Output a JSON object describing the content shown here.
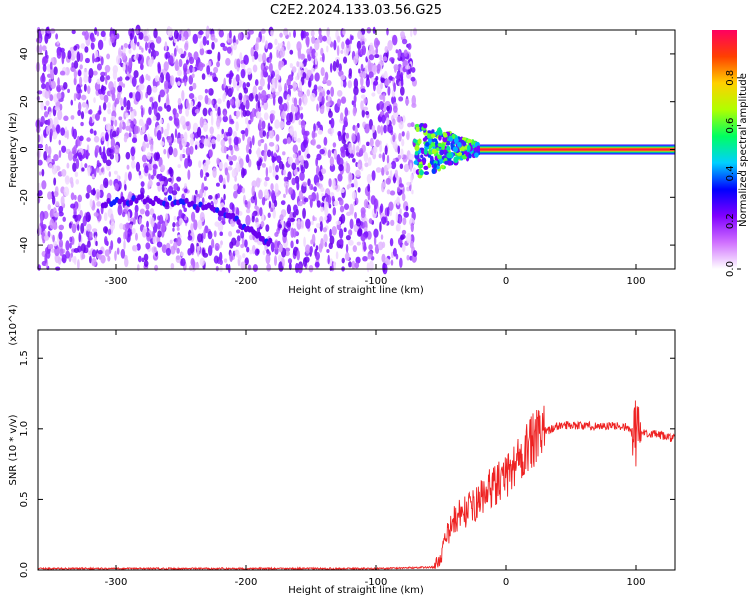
{
  "title": "C2E2.2024.133.03.56.G25",
  "chart_data": [
    {
      "type": "heatmap",
      "title": "C2E2.2024.133.03.56.G25",
      "xlabel": "Height of straight line (km)",
      "ylabel": "Frequency (Hz)",
      "xlim": [
        -360,
        130
      ],
      "ylim": [
        -50,
        50
      ],
      "x_ticks": [
        -300,
        -200,
        -100,
        0,
        100
      ],
      "y_ticks": [
        -40,
        -20,
        0,
        20,
        40
      ],
      "noise_region_x": [
        -360,
        -70
      ],
      "broadening_region_x": [
        -70,
        -20
      ],
      "narrow_trace": {
        "x_start": -20,
        "x_end": 130,
        "frequency": 0
      },
      "faint_drifting_trace": {
        "x": [
          -310,
          -280,
          -250,
          -220,
          -200,
          -180
        ],
        "frequency": [
          -23,
          -21,
          -22,
          -26,
          -32,
          -40
        ]
      },
      "colorbar": {
        "label": "Normalized spectral amplitude",
        "range": [
          0,
          1
        ],
        "ticks": [
          "0.0",
          "0.2",
          "0.4",
          "0.6",
          "0.8"
        ],
        "colormap": [
          "#ffffff",
          "#d070ff",
          "#8000ff",
          "#0000ff",
          "#00d0ff",
          "#00ff60",
          "#b0ff00",
          "#ffd000",
          "#ff4000",
          "#ff0060"
        ]
      }
    },
    {
      "type": "line",
      "xlabel": "Height of straight line (km)",
      "ylabel": "SNR (10 * v/v)",
      "multiplier": "(x10^4)",
      "xlim": [
        -360,
        130
      ],
      "ylim": [
        0,
        1.7
      ],
      "x_ticks": [
        -300,
        -200,
        -100,
        0,
        100
      ],
      "y_ticks": [
        "0.0",
        "0.5",
        "1.0",
        "1.5"
      ],
      "series": [
        {
          "color": "#ee2222",
          "x": [
            -360,
            -300,
            -200,
            -100,
            -55,
            -50,
            -45,
            -40,
            -35,
            -30,
            -25,
            -20,
            -15,
            -10,
            -5,
            0,
            10,
            20,
            30,
            40,
            50,
            60,
            70,
            80,
            90,
            95,
            100,
            102,
            105,
            110,
            120,
            130
          ],
          "y": [
            0.01,
            0.01,
            0.01,
            0.01,
            0.02,
            0.1,
            0.25,
            0.35,
            0.4,
            0.42,
            0.45,
            0.5,
            0.55,
            0.6,
            0.62,
            0.65,
            0.8,
            0.9,
            0.98,
            1.02,
            1.03,
            1.02,
            1.02,
            1.02,
            1.02,
            1.0,
            0.9,
            0.97,
            0.97,
            0.97,
            0.95,
            0.93
          ]
        }
      ]
    }
  ]
}
